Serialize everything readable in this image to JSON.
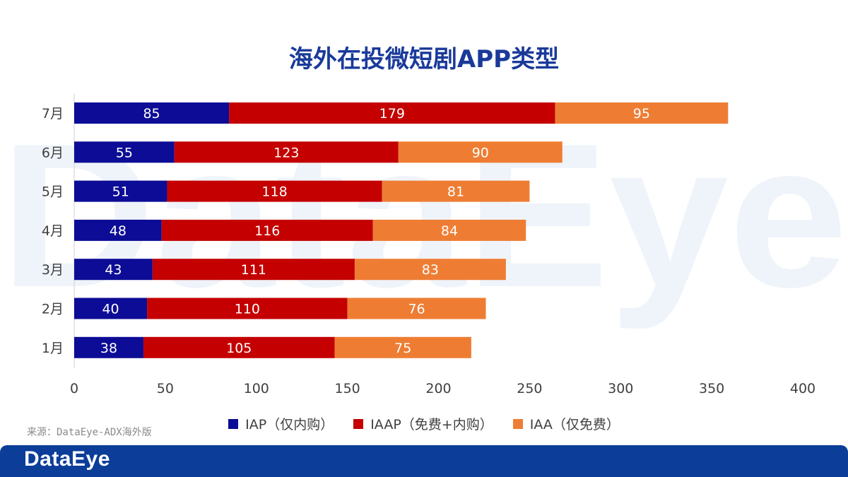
{
  "watermark_text": "DataEye",
  "footer": {
    "brand": "DataEye",
    "source": "来源：DataEye-ADX海外版"
  },
  "colors": {
    "title": "#1a3a9a",
    "iap": "#0c0c96",
    "iaap": "#c40000",
    "iaa": "#ee7d33",
    "footer_bg": "#0b3d99"
  },
  "chart_data": {
    "type": "bar",
    "orientation": "horizontal",
    "stacked": true,
    "title": "海外在投微短剧APP类型",
    "categories": [
      "7月",
      "6月",
      "5月",
      "4月",
      "3月",
      "2月",
      "1月"
    ],
    "series": [
      {
        "name": "IAP（仅内购）",
        "color": "#0c0c96",
        "values": [
          85,
          55,
          51,
          48,
          43,
          40,
          38
        ]
      },
      {
        "name": "IAAP（免费+内购）",
        "color": "#c40000",
        "values": [
          179,
          123,
          118,
          116,
          111,
          110,
          105
        ]
      },
      {
        "name": "IAA（仅免费）",
        "color": "#ee7d33",
        "values": [
          95,
          90,
          81,
          84,
          83,
          76,
          75
        ]
      }
    ],
    "xlim": [
      0,
      400
    ],
    "xticks": [
      0,
      50,
      100,
      150,
      200,
      250,
      300,
      350,
      400
    ],
    "grid": false,
    "legend_position": "bottom"
  }
}
